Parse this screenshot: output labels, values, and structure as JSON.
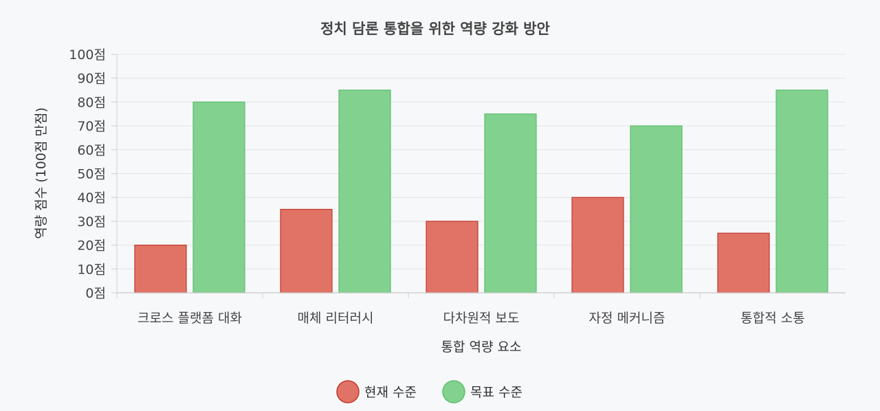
{
  "chart_data": {
    "type": "bar",
    "title": "정치 담론 통합을 위한 역량 강화 방안",
    "xlabel": "통합 역량 요소",
    "ylabel": "역량 점수 (100점 만점)",
    "ylim": [
      0,
      100
    ],
    "ytick_step": 10,
    "ytick_suffix": "점",
    "grid": true,
    "legend_position": "bottom",
    "categories": [
      "크로스 플랫폼 대화",
      "매체 리터러시",
      "다차원적 보도",
      "자정 메커니즘",
      "통합적 소통"
    ],
    "series": [
      {
        "name": "현재 수준",
        "values": [
          20,
          35,
          30,
          40,
          25
        ],
        "color": "#e07366",
        "stroke": "#c0392b"
      },
      {
        "name": "목표 수준",
        "values": [
          80,
          85,
          75,
          70,
          85
        ],
        "color": "#82d18f",
        "stroke": "#5cbf6f"
      }
    ]
  }
}
